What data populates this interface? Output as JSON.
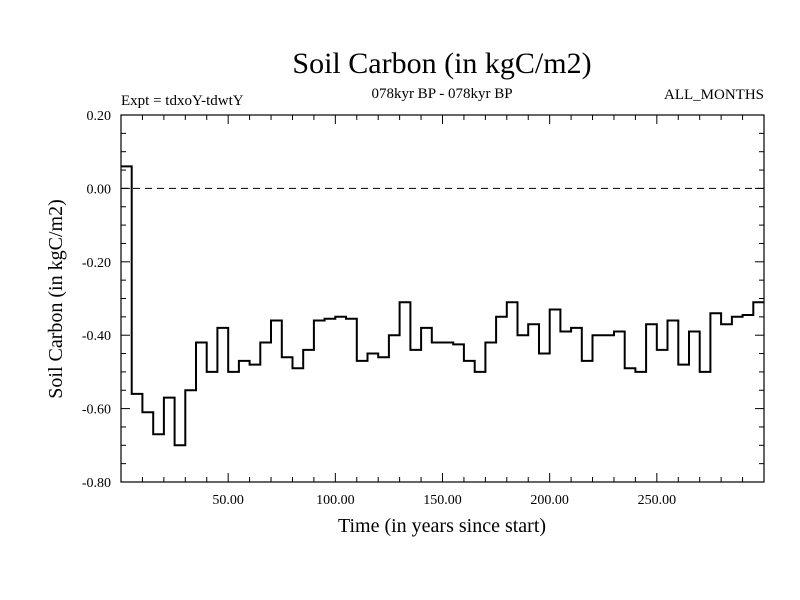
{
  "chart_data": {
    "type": "line",
    "step": true,
    "title": "Soil Carbon (in kgC/m2)",
    "subtitle_left": "Expt = tdxoY-tdwtY",
    "subtitle_center": "078kyr BP - 078kyr BP",
    "subtitle_right": "ALL_MONTHS",
    "xlabel": "Time (in years since start)",
    "ylabel": "Soil Carbon (in kgC/m2)",
    "xlim": [
      0,
      300
    ],
    "ylim": [
      -0.8,
      0.2
    ],
    "xticks": [
      50,
      100,
      150,
      200,
      250
    ],
    "xtick_labels": [
      "50.00",
      "100.00",
      "150.00",
      "200.00",
      "250.00"
    ],
    "yticks": [
      0.2,
      0.0,
      -0.2,
      -0.4,
      -0.6,
      -0.8
    ],
    "ytick_labels": [
      "0.20",
      "0.00",
      "-0.20",
      "-0.40",
      "-0.60",
      "-0.80"
    ],
    "reference_line": {
      "y": 0.0,
      "style": "dashed"
    },
    "colors": {
      "line": "#000000",
      "background": "#ffffff"
    },
    "series": [
      {
        "step_width": 5,
        "x": [
          0,
          5,
          10,
          15,
          20,
          25,
          30,
          35,
          40,
          45,
          50,
          55,
          60,
          65,
          70,
          75,
          80,
          85,
          90,
          95,
          100,
          105,
          110,
          115,
          120,
          125,
          130,
          135,
          140,
          145,
          150,
          155,
          160,
          165,
          170,
          175,
          180,
          185,
          190,
          195,
          200,
          205,
          210,
          215,
          220,
          225,
          230,
          235,
          240,
          245,
          250,
          255,
          260,
          265,
          270,
          275,
          280,
          285,
          290,
          295
        ],
        "y": [
          0.06,
          -0.56,
          -0.61,
          -0.67,
          -0.57,
          -0.7,
          -0.55,
          -0.42,
          -0.5,
          -0.38,
          -0.5,
          -0.47,
          -0.48,
          -0.42,
          -0.36,
          -0.46,
          -0.49,
          -0.44,
          -0.36,
          -0.355,
          -0.35,
          -0.355,
          -0.47,
          -0.45,
          -0.46,
          -0.4,
          -0.31,
          -0.44,
          -0.38,
          -0.42,
          -0.42,
          -0.425,
          -0.47,
          -0.5,
          -0.42,
          -0.35,
          -0.31,
          -0.4,
          -0.37,
          -0.45,
          -0.33,
          -0.39,
          -0.38,
          -0.47,
          -0.4,
          -0.4,
          -0.39,
          -0.49,
          -0.5,
          -0.37,
          -0.44,
          -0.36,
          -0.48,
          -0.39,
          -0.5,
          -0.34,
          -0.37,
          -0.35,
          -0.345,
          -0.31
        ]
      }
    ]
  }
}
